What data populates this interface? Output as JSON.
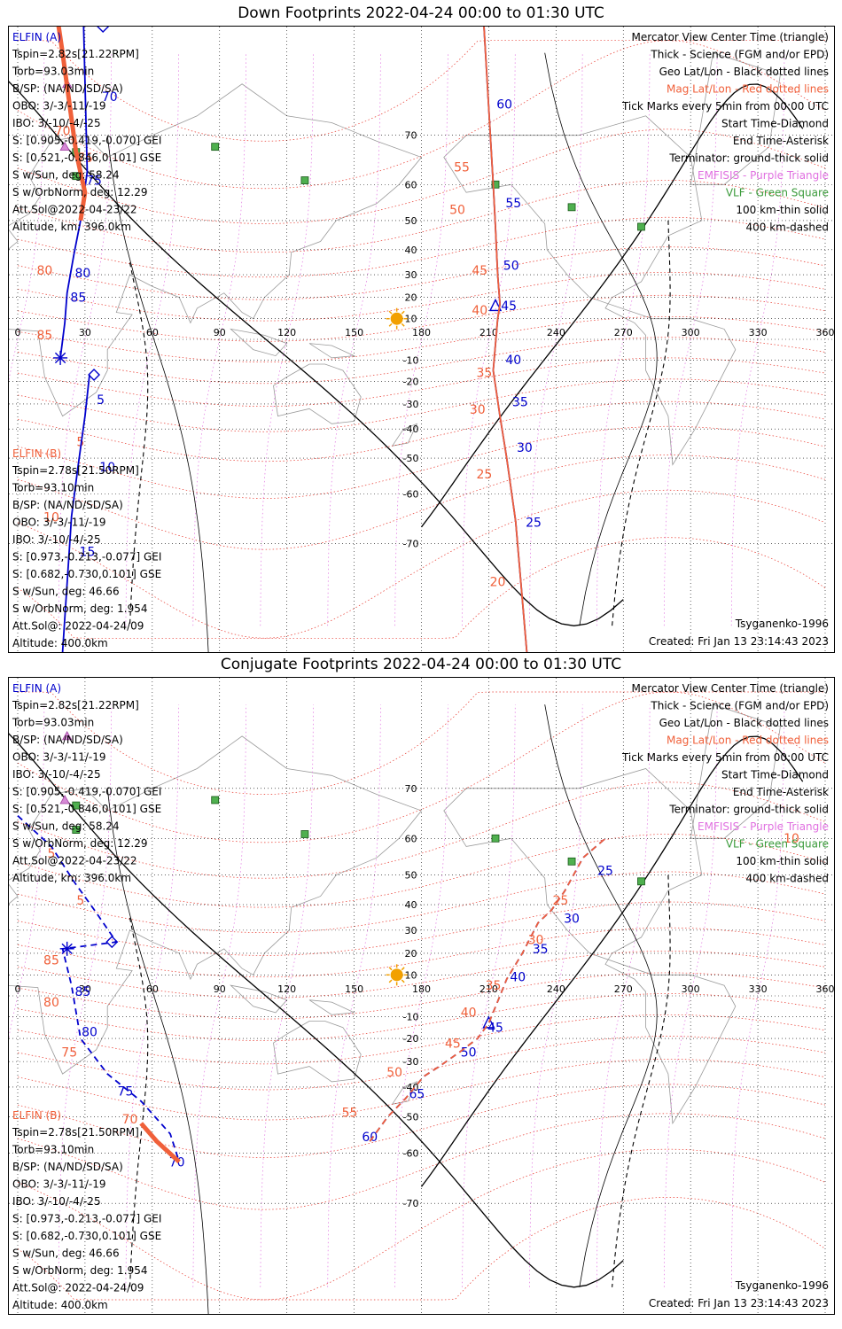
{
  "colors": {
    "blue": "#0000cc",
    "red": "#f0603a",
    "purple": "#e070e0",
    "green": "#3a9a3a",
    "black": "#000000",
    "gray": "#9a9a9a",
    "sun": "#f2a000"
  },
  "panels": [
    {
      "title": "Down Footprints 2022-04-24 00:00 to 01:30 UTC",
      "elfin_a": {
        "header": "ELFIN (A)",
        "lines": [
          "Tspin=2.82s[21.22RPM]",
          "Torb=93.03min",
          "B/SP: (NA/ND/SD/SA)",
          "OBO: 3/-3/-11/-19",
          "IBO: 3/-10/-4/-25",
          "S: [0.905,-0.419,-0.070] GEI",
          "S: [0.521,-0.846,0.101] GSE",
          "S w/Sun, deg: 58.24",
          "S w/OrbNorm, deg: 12.29",
          "Att.Sol@2022-04-23/22",
          "Altitude, km: 396.0km"
        ]
      },
      "elfin_b": {
        "header": "ELFIN (B)",
        "lines": [
          "Tspin=2.78s[21.50RPM]",
          "Torb=93.10min",
          "B/SP: (NA/ND/SD/SA)",
          "OBO: 3/-3/-11/-19",
          "IBO: 3/-10/-4/-25",
          "S: [0.973,-0.213,-0.077] GEI",
          "S: [0.682,-0.730,0.101] GSE",
          "S w/Sun, deg: 46.66",
          "S w/OrbNorm, deg: 1.954",
          "Att.Sol@: 2022-04-24/09",
          "Altitude: 400.0km"
        ]
      },
      "legend": [
        "Mercator View Center Time (triangle)",
        "Thick - Science (FGM and/or EPD)",
        "Geo Lat/Lon - Black dotted lines",
        "Mag Lat/Lon - Red dotted lines",
        "Tick Marks every 5min from 00:00 UTC",
        "Start Time-Diamond",
        "End Time-Asterisk",
        "Terminator: ground-thick solid",
        "EMFISIS - Purple Triangle",
        "VLF - Green Square",
        "100 km-thin solid",
        "400 km-dashed"
      ],
      "model": "Tsyganenko-1996",
      "created": "Created: Fri Jan 13 23:14:43 2023"
    },
    {
      "title": "Conjugate Footprints 2022-04-24 00:00 to 01:30 UTC",
      "elfin_a": {
        "header": "ELFIN (A)",
        "lines": [
          "Tspin=2.82s[21.22RPM]",
          "Torb=93.03min",
          "B/SP: (NA/ND/SD/SA)",
          "OBO: 3/-3/-11/-19",
          "IBO: 3/-10/-4/-25",
          "S: [0.905,-0.419,-0.070] GEI",
          "S: [0.521,-0.846,0.101] GSE",
          "S w/Sun, deg: 58.24",
          "S w/OrbNorm, deg: 12.29",
          "Att.Sol@2022-04-23/22",
          "Altitude, km: 396.0km"
        ]
      },
      "elfin_b": {
        "header": "ELFIN (B)",
        "lines": [
          "Tspin=2.78s[21.50RPM]",
          "Torb=93.10min",
          "B/SP: (NA/ND/SD/SA)",
          "OBO: 3/-3/-11/-19",
          "IBO: 3/-10/-4/-25",
          "S: [0.973,-0.213,-0.077] GEI",
          "S: [0.682,-0.730,0.101] GSE",
          "S w/Sun, deg: 46.66",
          "S w/OrbNorm, deg: 1.954",
          "Att.Sol@: 2022-04-24/09",
          "Altitude: 400.0km"
        ]
      },
      "legend": [
        "Mercator View Center Time (triangle)",
        "Thick - Science (FGM and/or EPD)",
        "Geo Lat/Lon - Black dotted lines",
        "Mag Lat/Lon - Red dotted lines",
        "Tick Marks every 5min from 00:00 UTC",
        "Start Time-Diamond",
        "End Time-Asterisk",
        "Terminator: ground-thick solid",
        "EMFISIS - Purple Triangle",
        "VLF - Green Square",
        "100 km-thin solid",
        "400 km-dashed"
      ],
      "model": "Tsyganenko-1996",
      "created": "Created: Fri Jan 13 23:14:43 2023"
    }
  ],
  "chart_data": [
    {
      "type": "map",
      "map_view": "mercator",
      "x_ticks": [
        0,
        30,
        60,
        90,
        120,
        150,
        180,
        210,
        240,
        270,
        300,
        330,
        360
      ],
      "y_ticks": [
        70,
        60,
        50,
        40,
        30,
        20,
        10,
        -10,
        -20,
        -30,
        -40,
        -50,
        -60,
        -70
      ],
      "xlim": [
        0,
        360
      ],
      "ylim": [
        -82,
        82
      ],
      "grid": true,
      "sun": {
        "lon": 169,
        "lat": 10
      },
      "vlf_stations": [
        {
          "lon": 88,
          "lat": 68
        },
        {
          "lon": 26,
          "lat": 67
        },
        {
          "lon": 26,
          "lat": 62
        },
        {
          "lon": 128,
          "lat": 61
        },
        {
          "lon": 213,
          "lat": 60
        },
        {
          "lon": 247,
          "lat": 54
        },
        {
          "lon": 278,
          "lat": 48
        }
      ],
      "emfisis": [
        {
          "lon": 22,
          "lat": 77
        },
        {
          "lon": 21,
          "lat": 68
        }
      ],
      "series": [
        {
          "name": "ELFIN (A)",
          "color": "blue",
          "style": "solid",
          "points": [
            [
              16,
              84
            ],
            [
              29,
              84
            ],
            [
              31,
              63
            ],
            [
              28,
              50
            ],
            [
              25,
              38
            ],
            [
              22,
              22
            ],
            [
              21,
              8
            ],
            [
              19,
              -9
            ]
          ],
          "ticks": [
            {
              "label": "70",
              "lon": 41,
              "lat": 75
            },
            {
              "label": "75",
              "lon": 34,
              "lat": 60
            },
            {
              "label": "80",
              "lon": 29,
              "lat": 29
            },
            {
              "label": "85",
              "lon": 27,
              "lat": 18
            }
          ],
          "start": {
            "lon": 38,
            "lat": 82
          },
          "end": {
            "lon": 19,
            "lat": -9
          }
        },
        {
          "name": "ELFIN (A)",
          "color": "red",
          "style": "thick",
          "points": [
            [
              16,
              84
            ],
            [
              20,
              80
            ],
            [
              26,
              67
            ],
            [
              30,
              58
            ],
            [
              28,
              50
            ]
          ]
        },
        {
          "name": "ELFIN (A)",
          "color": "blue",
          "style": "solid",
          "points": [
            [
              207,
              84
            ],
            [
              212,
              60
            ],
            [
              213,
              48
            ],
            [
              214,
              30
            ],
            [
              215,
              17
            ],
            [
              214,
              10
            ],
            [
              212,
              -15
            ],
            [
              215,
              -35
            ],
            [
              218,
              -50
            ],
            [
              222,
              -66
            ],
            [
              227,
              -82
            ]
          ],
          "ticks": [
            {
              "label": "60",
              "lon": 217,
              "lat": 74
            },
            {
              "label": "55",
              "lon": 221,
              "lat": 54
            },
            {
              "label": "50",
              "lon": 220,
              "lat": 32
            },
            {
              "label": "45",
              "lon": 219,
              "lat": 14
            },
            {
              "label": "40",
              "lon": 221,
              "lat": -12
            },
            {
              "label": "35",
              "lon": 224,
              "lat": -31
            },
            {
              "label": "30",
              "lon": 226,
              "lat": -48
            },
            {
              "label": "25",
              "lon": 230,
              "lat": -67
            }
          ],
          "view_center": {
            "lon": 213,
            "lat": 16
          }
        },
        {
          "name": "ELFIN (A)",
          "color": "red",
          "style": "solid",
          "points": [
            [
              207,
              84
            ],
            [
              212,
              60
            ],
            [
              213,
              48
            ],
            [
              214,
              30
            ],
            [
              215,
              17
            ],
            [
              214,
              10
            ],
            [
              212,
              -15
            ],
            [
              215,
              -35
            ],
            [
              218,
              -50
            ],
            [
              222,
              -66
            ],
            [
              227,
              -82
            ]
          ]
        },
        {
          "name": "ELFIN (B)",
          "color": "blue",
          "style": "solid",
          "points": [
            [
              32,
              -17
            ],
            [
              30,
              -35
            ],
            [
              27,
              -52
            ],
            [
              24,
              -65
            ],
            [
              20,
              -82
            ]
          ],
          "ticks": [
            {
              "label": "5",
              "lon": 37,
              "lat": -30
            },
            {
              "label": "10",
              "lon": 40,
              "lat": -54
            },
            {
              "label": "15",
              "lon": 31,
              "lat": -72
            }
          ],
          "start": {
            "lon": 34,
            "lat": -17
          }
        }
      ],
      "mag_lat_labels": [
        {
          "label": "70",
          "lon": 20,
          "lat": 70
        },
        {
          "label": "75",
          "lon": 30,
          "lat": 65
        },
        {
          "label": "80",
          "lon": 12,
          "lat": 30
        },
        {
          "label": "85",
          "lon": 12,
          "lat": 0
        },
        {
          "label": "55",
          "lon": 198,
          "lat": 63
        },
        {
          "label": "50",
          "lon": 196,
          "lat": 52
        },
        {
          "label": "45",
          "lon": 206,
          "lat": 30
        },
        {
          "label": "40",
          "lon": 206,
          "lat": 12
        },
        {
          "label": "35",
          "lon": 208,
          "lat": -18
        },
        {
          "label": "30",
          "lon": 205,
          "lat": -34
        },
        {
          "label": "25",
          "lon": 208,
          "lat": -56
        },
        {
          "label": "20",
          "lon": 214,
          "lat": -76
        },
        {
          "label": "5",
          "lon": 28,
          "lat": -46
        },
        {
          "label": "10",
          "lon": 15,
          "lat": -66
        }
      ]
    },
    {
      "type": "map",
      "map_view": "mercator",
      "x_ticks": [
        0,
        30,
        60,
        90,
        120,
        150,
        180,
        210,
        240,
        270,
        300,
        330,
        360
      ],
      "y_ticks": [
        70,
        60,
        50,
        40,
        30,
        20,
        10,
        -10,
        -20,
        -30,
        -40,
        -50,
        -60,
        -70
      ],
      "xlim": [
        0,
        360
      ],
      "ylim": [
        -82,
        82
      ],
      "grid": true,
      "sun": {
        "lon": 169,
        "lat": 10
      },
      "vlf_stations": [
        {
          "lon": 88,
          "lat": 68
        },
        {
          "lon": 26,
          "lat": 67
        },
        {
          "lon": 26,
          "lat": 62
        },
        {
          "lon": 128,
          "lat": 61
        },
        {
          "lon": 213,
          "lat": 60
        },
        {
          "lon": 247,
          "lat": 54
        },
        {
          "lon": 278,
          "lat": 48
        }
      ],
      "emfisis": [
        {
          "lon": 22,
          "lat": 77
        },
        {
          "lon": 21,
          "lat": 68
        }
      ],
      "series": [
        {
          "name": "ELFIN (A)",
          "color": "blue",
          "style": "dashed",
          "points": [
            [
              0,
              65
            ],
            [
              15,
              58
            ],
            [
              25,
              48
            ],
            [
              35,
              37
            ],
            [
              44,
              25
            ],
            [
              20,
              22
            ],
            [
              24,
              5
            ],
            [
              28,
              -20
            ],
            [
              40,
              -35
            ],
            [
              55,
              -45
            ],
            [
              68,
              -55
            ],
            [
              72,
              -62
            ]
          ],
          "ticks": [
            {
              "label": "85",
              "lon": 29,
              "lat": 0
            },
            {
              "label": "80",
              "lon": 32,
              "lat": -19
            },
            {
              "label": "75",
              "lon": 48,
              "lat": -43
            },
            {
              "label": "70",
              "lon": 71,
              "lat": -63
            }
          ],
          "start": {
            "lon": 42,
            "lat": 25
          },
          "end": {
            "lon": 22,
            "lat": 22
          }
        },
        {
          "name": "ELFIN (A)",
          "color": "red",
          "style": "thick",
          "points": [
            [
              55,
              -52
            ],
            [
              62,
              -57
            ],
            [
              72,
              -62
            ]
          ]
        },
        {
          "name": "ELFIN (A)",
          "color": "blue",
          "style": "dashed",
          "points": [
            [
              157,
              -57
            ],
            [
              165,
              -50
            ],
            [
              173,
              -44
            ],
            [
              181,
              -36
            ],
            [
              188,
              -32
            ],
            [
              197,
              -26
            ],
            [
              205,
              -20
            ],
            [
              210,
              -13
            ],
            [
              215,
              0
            ],
            [
              218,
              8
            ],
            [
              225,
              20
            ],
            [
              232,
              33
            ],
            [
              238,
              38
            ],
            [
              244,
              45
            ],
            [
              252,
              55
            ],
            [
              262,
              60
            ]
          ],
          "ticks": [
            {
              "label": "60",
              "lon": 157,
              "lat": -57
            },
            {
              "label": "65",
              "lon": 178,
              "lat": -44
            },
            {
              "label": "50",
              "lon": 201,
              "lat": -28
            },
            {
              "label": "45",
              "lon": 213,
              "lat": -17
            },
            {
              "label": "40",
              "lon": 223,
              "lat": 7
            },
            {
              "label": "35",
              "lon": 233,
              "lat": 20
            },
            {
              "label": "30",
              "lon": 247,
              "lat": 33
            },
            {
              "label": "25",
              "lon": 262,
              "lat": 50
            }
          ],
          "view_center": {
            "lon": 210,
            "lat": -13
          }
        },
        {
          "name": "ELFIN (A)",
          "color": "red",
          "style": "dashed",
          "points": [
            [
              157,
              -57
            ],
            [
              165,
              -50
            ],
            [
              173,
              -44
            ],
            [
              181,
              -36
            ],
            [
              188,
              -32
            ],
            [
              197,
              -26
            ],
            [
              205,
              -20
            ],
            [
              210,
              -13
            ],
            [
              215,
              0
            ],
            [
              218,
              8
            ],
            [
              225,
              20
            ],
            [
              232,
              33
            ],
            [
              238,
              38
            ],
            [
              244,
              45
            ],
            [
              252,
              55
            ],
            [
              262,
              60
            ]
          ]
        }
      ],
      "mag_lat_labels": [
        {
          "label": "5",
          "lon": 15,
          "lat": 55
        },
        {
          "label": "5",
          "lon": 28,
          "lat": 40
        },
        {
          "label": "85",
          "lon": 15,
          "lat": 15
        },
        {
          "label": "80",
          "lon": 15,
          "lat": -5
        },
        {
          "label": "75",
          "lon": 23,
          "lat": -28
        },
        {
          "label": "70",
          "lon": 50,
          "lat": -52
        },
        {
          "label": "55",
          "lon": 148,
          "lat": -50
        },
        {
          "label": "50",
          "lon": 168,
          "lat": -36
        },
        {
          "label": "45",
          "lon": 194,
          "lat": -24
        },
        {
          "label": "40",
          "lon": 201,
          "lat": -10
        },
        {
          "label": "35",
          "lon": 212,
          "lat": 3
        },
        {
          "label": "30",
          "lon": 231,
          "lat": 24
        },
        {
          "label": "25",
          "lon": 242,
          "lat": 40
        },
        {
          "label": "10",
          "lon": 345,
          "lat": 59
        }
      ]
    }
  ]
}
